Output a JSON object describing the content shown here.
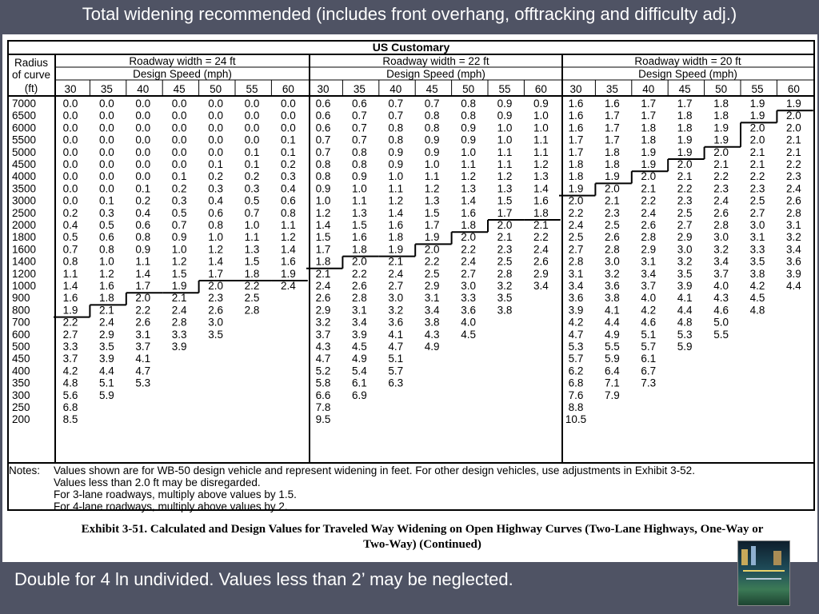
{
  "slide": {
    "title": "Total widening recommended (includes front overhang, offtracking and difficulty adj.)",
    "footer": "Double for 4 ln undivided.  Values less than 2’ may be neglected."
  },
  "table": {
    "system": "US Customary",
    "radius_label": [
      "Radius",
      "of curve",
      "(ft)"
    ],
    "speed_label": "Design Speed (mph)",
    "speeds": [
      30,
      35,
      40,
      45,
      50,
      55,
      60
    ],
    "groups": [
      {
        "label": "Roadway width = 24 ft"
      },
      {
        "label": "Roadway width = 22 ft"
      },
      {
        "label": "Roadway width = 20 ft"
      }
    ],
    "radii": [
      "7000",
      "6500",
      "6000",
      "5500",
      "5000",
      "4500",
      "4000",
      "3500",
      "3000",
      "2500",
      "2000",
      "1800",
      "1600",
      "1400",
      "1200",
      "1000",
      "900",
      "800",
      "700",
      "600",
      "500",
      "450",
      "400",
      "350",
      "300",
      "250",
      "200"
    ],
    "values": [
      [
        [
          "0.0",
          "0.0",
          "0.0",
          "0.0",
          "0.0",
          "0.0",
          "0.0"
        ],
        [
          "0.6",
          "0.6",
          "0.7",
          "0.7",
          "0.8",
          "0.9",
          "0.9"
        ],
        [
          "1.6",
          "1.6",
          "1.7",
          "1.7",
          "1.8",
          "1.9",
          "1.9"
        ]
      ],
      [
        [
          "0.0",
          "0.0",
          "0.0",
          "0.0",
          "0.0",
          "0.0",
          "0.0"
        ],
        [
          "0.6",
          "0.7",
          "0.7",
          "0.8",
          "0.8",
          "0.9",
          "1.0"
        ],
        [
          "1.6",
          "1.7",
          "1.7",
          "1.8",
          "1.8",
          "1.9",
          "2.0"
        ]
      ],
      [
        [
          "0.0",
          "0.0",
          "0.0",
          "0.0",
          "0.0",
          "0.0",
          "0.0"
        ],
        [
          "0.6",
          "0.7",
          "0.8",
          "0.8",
          "0.9",
          "1.0",
          "1.0"
        ],
        [
          "1.6",
          "1.7",
          "1.8",
          "1.8",
          "1.9",
          "2.0",
          "2.0"
        ]
      ],
      [
        [
          "0.0",
          "0.0",
          "0.0",
          "0.0",
          "0.0",
          "0.0",
          "0.1"
        ],
        [
          "0.7",
          "0.7",
          "0.8",
          "0.9",
          "0.9",
          "1.0",
          "1.1"
        ],
        [
          "1.7",
          "1.7",
          "1.8",
          "1.9",
          "1.9",
          "2.0",
          "2.1"
        ]
      ],
      [
        [
          "0.0",
          "0.0",
          "0.0",
          "0.0",
          "0.0",
          "0.1",
          "0.1"
        ],
        [
          "0.7",
          "0.8",
          "0.9",
          "0.9",
          "1.0",
          "1.1",
          "1.1"
        ],
        [
          "1.7",
          "1.8",
          "1.9",
          "1.9",
          "2.0",
          "2.1",
          "2.1"
        ]
      ],
      [
        [
          "0.0",
          "0.0",
          "0.0",
          "0.0",
          "0.1",
          "0.1",
          "0.2"
        ],
        [
          "0.8",
          "0.8",
          "0.9",
          "1.0",
          "1.1",
          "1.1",
          "1.2"
        ],
        [
          "1.8",
          "1.8",
          "1.9",
          "2.0",
          "2.1",
          "2.1",
          "2.2"
        ]
      ],
      [
        [
          "0.0",
          "0.0",
          "0.0",
          "0.1",
          "0.2",
          "0.2",
          "0.3"
        ],
        [
          "0.8",
          "0.9",
          "1.0",
          "1.1",
          "1.2",
          "1.2",
          "1.3"
        ],
        [
          "1.8",
          "1.9",
          "2.0",
          "2.1",
          "2.2",
          "2.2",
          "2.3"
        ]
      ],
      [
        [
          "0.0",
          "0.0",
          "0.1",
          "0.2",
          "0.3",
          "0.3",
          "0.4"
        ],
        [
          "0.9",
          "1.0",
          "1.1",
          "1.2",
          "1.3",
          "1.3",
          "1.4"
        ],
        [
          "1.9",
          "2.0",
          "2.1",
          "2.2",
          "2.3",
          "2.3",
          "2.4"
        ]
      ],
      [
        [
          "0.0",
          "0.1",
          "0.2",
          "0.3",
          "0.4",
          "0.5",
          "0.6"
        ],
        [
          "1.0",
          "1.1",
          "1.2",
          "1.3",
          "1.4",
          "1.5",
          "1.6"
        ],
        [
          "2.0",
          "2.1",
          "2.2",
          "2.3",
          "2.4",
          "2.5",
          "2.6"
        ]
      ],
      [
        [
          "0.2",
          "0.3",
          "0.4",
          "0.5",
          "0.6",
          "0.7",
          "0.8"
        ],
        [
          "1.2",
          "1.3",
          "1.4",
          "1.5",
          "1.6",
          "1.7",
          "1.8"
        ],
        [
          "2.2",
          "2.3",
          "2.4",
          "2.5",
          "2.6",
          "2.7",
          "2.8"
        ]
      ],
      [
        [
          "0.4",
          "0.5",
          "0.6",
          "0.7",
          "0.8",
          "1.0",
          "1.1"
        ],
        [
          "1.4",
          "1.5",
          "1.6",
          "1.7",
          "1.8",
          "2.0",
          "2.1"
        ],
        [
          "2.4",
          "2.5",
          "2.6",
          "2.7",
          "2.8",
          "3.0",
          "3.1"
        ]
      ],
      [
        [
          "0.5",
          "0.6",
          "0.8",
          "0.9",
          "1.0",
          "1.1",
          "1.2"
        ],
        [
          "1.5",
          "1.6",
          "1.8",
          "1.9",
          "2.0",
          "2.1",
          "2.2"
        ],
        [
          "2.5",
          "2.6",
          "2.8",
          "2.9",
          "3.0",
          "3.1",
          "3.2"
        ]
      ],
      [
        [
          "0.7",
          "0.8",
          "0.9",
          "1.0",
          "1.2",
          "1.3",
          "1.4"
        ],
        [
          "1.7",
          "1.8",
          "1.9",
          "2.0",
          "2.2",
          "2.3",
          "2.4"
        ],
        [
          "2.7",
          "2.8",
          "2.9",
          "3.0",
          "3.2",
          "3.3",
          "3.4"
        ]
      ],
      [
        [
          "0.8",
          "1.0",
          "1.1",
          "1.2",
          "1.4",
          "1.5",
          "1.6"
        ],
        [
          "1.8",
          "2.0",
          "2.1",
          "2.2",
          "2.4",
          "2.5",
          "2.6"
        ],
        [
          "2.8",
          "3.0",
          "3.1",
          "3.2",
          "3.4",
          "3.5",
          "3.6"
        ]
      ],
      [
        [
          "1.1",
          "1.2",
          "1.4",
          "1.5",
          "1.7",
          "1.8",
          "1.9"
        ],
        [
          "2.1",
          "2.2",
          "2.4",
          "2.5",
          "2.7",
          "2.8",
          "2.9"
        ],
        [
          "3.1",
          "3.2",
          "3.4",
          "3.5",
          "3.7",
          "3.8",
          "3.9"
        ]
      ],
      [
        [
          "1.4",
          "1.6",
          "1.7",
          "1.9",
          "2.0",
          "2.2",
          "2.4"
        ],
        [
          "2.4",
          "2.6",
          "2.7",
          "2.9",
          "3.0",
          "3.2",
          "3.4"
        ],
        [
          "3.4",
          "3.6",
          "3.7",
          "3.9",
          "4.0",
          "4.2",
          "4.4"
        ]
      ],
      [
        [
          "1.6",
          "1.8",
          "2.0",
          "2.1",
          "2.3",
          "2.5",
          ""
        ],
        [
          "2.6",
          "2.8",
          "3.0",
          "3.1",
          "3.3",
          "3.5",
          ""
        ],
        [
          "3.6",
          "3.8",
          "4.0",
          "4.1",
          "4.3",
          "4.5",
          ""
        ]
      ],
      [
        [
          "1.9",
          "2.1",
          "2.2",
          "2.4",
          "2.6",
          "2.8",
          ""
        ],
        [
          "2.9",
          "3.1",
          "3.2",
          "3.4",
          "3.6",
          "3.8",
          ""
        ],
        [
          "3.9",
          "4.1",
          "4.2",
          "4.4",
          "4.6",
          "4.8",
          ""
        ]
      ],
      [
        [
          "2.2",
          "2.4",
          "2.6",
          "2.8",
          "3.0",
          "",
          ""
        ],
        [
          "3.2",
          "3.4",
          "3.6",
          "3.8",
          "4.0",
          "",
          ""
        ],
        [
          "4.2",
          "4.4",
          "4.6",
          "4.8",
          "5.0",
          "",
          ""
        ]
      ],
      [
        [
          "2.7",
          "2.9",
          "3.1",
          "3.3",
          "3.5",
          "",
          ""
        ],
        [
          "3.7",
          "3.9",
          "4.1",
          "4.3",
          "4.5",
          "",
          ""
        ],
        [
          "4.7",
          "4.9",
          "5.1",
          "5.3",
          "5.5",
          "",
          ""
        ]
      ],
      [
        [
          "3.3",
          "3.5",
          "3.7",
          "3.9",
          "",
          "",
          ""
        ],
        [
          "4.3",
          "4.5",
          "4.7",
          "4.9",
          "",
          "",
          ""
        ],
        [
          "5.3",
          "5.5",
          "5.7",
          "5.9",
          "",
          "",
          ""
        ]
      ],
      [
        [
          "3.7",
          "3.9",
          "4.1",
          "",
          "",
          "",
          ""
        ],
        [
          "4.7",
          "4.9",
          "5.1",
          "",
          "",
          "",
          ""
        ],
        [
          "5.7",
          "5.9",
          "6.1",
          "",
          "",
          "",
          ""
        ]
      ],
      [
        [
          "4.2",
          "4.4",
          "4.7",
          "",
          "",
          "",
          ""
        ],
        [
          "5.2",
          "5.4",
          "5.7",
          "",
          "",
          "",
          ""
        ],
        [
          "6.2",
          "6.4",
          "6.7",
          "",
          "",
          "",
          ""
        ]
      ],
      [
        [
          "4.8",
          "5.1",
          "5.3",
          "",
          "",
          "",
          ""
        ],
        [
          "5.8",
          "6.1",
          "6.3",
          "",
          "",
          "",
          ""
        ],
        [
          "6.8",
          "7.1",
          "7.3",
          "",
          "",
          "",
          ""
        ]
      ],
      [
        [
          "5.6",
          "5.9",
          "",
          "",
          "",
          "",
          ""
        ],
        [
          "6.6",
          "6.9",
          "",
          "",
          "",
          "",
          ""
        ],
        [
          "7.6",
          "7.9",
          "",
          "",
          "",
          "",
          ""
        ]
      ],
      [
        [
          "6.8",
          "",
          "",
          "",
          "",
          "",
          ""
        ],
        [
          "7.8",
          "",
          "",
          "",
          "",
          "",
          ""
        ],
        [
          "8.8",
          "",
          "",
          "",
          "",
          "",
          ""
        ]
      ],
      [
        [
          "8.5",
          "",
          "",
          "",
          "",
          "",
          ""
        ],
        [
          "9.5",
          "",
          "",
          "",
          "",
          "",
          ""
        ],
        [
          "10.5",
          "",
          "",
          "",
          "",
          "",
          ""
        ]
      ]
    ],
    "notes_label": "Notes:",
    "notes": [
      "Values shown are for WB-50 design vehicle and represent widening in feet.  For other design vehicles, use adjustments in Exhibit 3-52.",
      "Values less than 2.0 ft may be disregarded.",
      "For 3-lane roadways, multiply above values by 1.5.",
      "For 4-lane roadways, multiply above values by 2."
    ]
  },
  "caption": {
    "line1": "Exhibit 3-51.  Calculated and Design Values for Traveled Way Widening on Open Highway Curves (Two-Lane Highways, One-Way or",
    "line2": "Two-Way) (Continued)"
  }
}
